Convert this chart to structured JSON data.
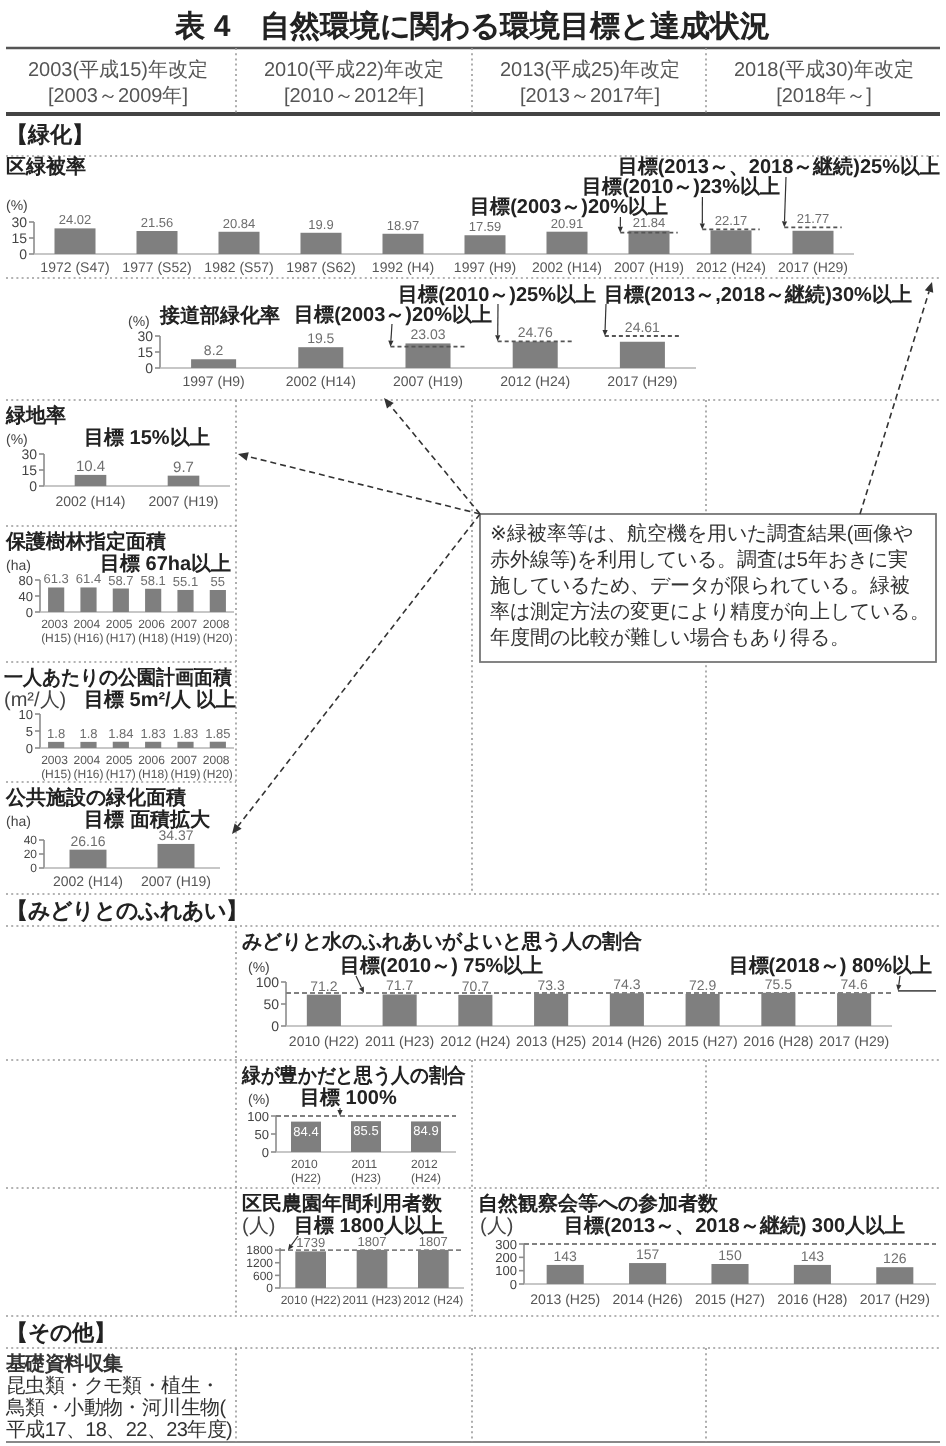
{
  "chart_data": [
    {
      "type": "other",
      "title": "表 4　自然環境に関わる環境目標と達成状況",
      "annotations": [
        "2003(平成15)年改定",
        "[2003～2009年]",
        "2010(平成22)年改定",
        "[2010～2012年]",
        "2013(平成25)年改定",
        "[2013～2017年]",
        "2018(平成30)年改定",
        "[2018年～]"
      ]
    },
    {
      "type": "other",
      "title": "【緑化】"
    },
    {
      "type": "bar",
      "title": "区緑被率",
      "ylabel": "(%)",
      "categories": [
        "1972 (S47)",
        "1977 (S52)",
        "1982 (S57)",
        "1987 (S62)",
        "1992 (H4)",
        "1997 (H9)",
        "2002 (H14)",
        "2007 (H19)",
        "2012 (H24)",
        "2017 (H29)"
      ],
      "values": [
        24.02,
        21.56,
        20.84,
        19.9,
        18.97,
        17.59,
        20.91,
        21.84,
        22.17,
        21.77
      ],
      "color": "#7f7f7f",
      "ylim": [
        0,
        30
      ],
      "yticks": [
        0,
        15,
        30
      ],
      "data_labels": true,
      "annotations": [
        {
          "text": "目標(2003～)20%以上",
          "x": "2007 (H19)",
          "y": 20
        },
        {
          "text": "目標(2010～)23%以上",
          "x": "2012 (H24)",
          "y": 23
        },
        {
          "text": "目標(2013～、2018～継続)25%以上",
          "x": "2017 (H29)",
          "y": 25
        }
      ]
    },
    {
      "type": "bar",
      "title": "接道部緑化率",
      "ylabel": "(%)",
      "categories": [
        "1997 (H9)",
        "2002 (H14)",
        "2007 (H19)",
        "2012 (H24)",
        "2017 (H29)"
      ],
      "values": [
        8.2,
        19.5,
        23.03,
        24.76,
        24.61
      ],
      "color": "#7f7f7f",
      "ylim": [
        0,
        30
      ],
      "yticks": [
        0,
        15,
        30
      ],
      "data_labels": true,
      "annotations": [
        {
          "text": "目標(2003～)20%以上",
          "x": "2007 (H19)",
          "y": 20
        },
        {
          "text": "目標(2010～)25%以上",
          "x": "2012 (H24)",
          "y": 25
        },
        {
          "text": "目標(2013～,2018～継続)30%以上",
          "x": "2017 (H29)",
          "y": 30
        }
      ]
    },
    {
      "type": "bar",
      "title": "緑地率",
      "ylabel": "(%)",
      "categories": [
        "2002 (H14)",
        "2007 (H19)"
      ],
      "values": [
        10.4,
        9.7
      ],
      "color": "#7f7f7f",
      "ylim": [
        0,
        30
      ],
      "yticks": [
        0,
        15,
        30
      ],
      "data_labels": true,
      "annotations": [
        "目標 15%以上"
      ]
    },
    {
      "type": "bar",
      "title": "保護樹林指定面積",
      "ylabel": "(ha)",
      "categories": [
        "2003 (H15)",
        "2004 (H16)",
        "2005 (H17)",
        "2006 (H18)",
        "2007 (H19)",
        "2008 (H20)"
      ],
      "values": [
        61.3,
        61.4,
        58.7,
        58.1,
        55.1,
        55
      ],
      "color": "#7f7f7f",
      "ylim": [
        0,
        80
      ],
      "yticks": [
        0,
        40,
        80
      ],
      "data_labels": true,
      "annotations": [
        "目標 67ha以上"
      ]
    },
    {
      "type": "other",
      "annotations": [
        "※緑被率等は、航空機を用いた調査結果(画像や赤外線等)を利用している。調査は5年おきに実施しているため、データが限られている。緑被率は測定方法の変更により精度が向上している。年度間の比較が難しい場合もあり得る。"
      ]
    },
    {
      "type": "bar",
      "title": "一人あたりの公園計画面積",
      "ylabel": "(m²/人)",
      "categories": [
        "2003 (H15)",
        "2004 (H16)",
        "2005 (H17)",
        "2006 (H18)",
        "2007 (H19)",
        "2008 (H20)"
      ],
      "values": [
        1.8,
        1.8,
        1.84,
        1.83,
        1.83,
        1.85
      ],
      "color": "#7f7f7f",
      "ylim": [
        0,
        10
      ],
      "yticks": [
        0,
        5,
        10
      ],
      "data_labels": true,
      "annotations": [
        "目標 5m²/人 以上"
      ]
    },
    {
      "type": "bar",
      "title": "公共施設の緑化面積",
      "ylabel": "(ha)",
      "categories": [
        "2002 (H14)",
        "2007 (H19)"
      ],
      "values": [
        26.16,
        34.37
      ],
      "color": "#7f7f7f",
      "ylim": [
        0,
        40
      ],
      "yticks": [
        0,
        20,
        40
      ],
      "data_labels": true,
      "annotations": [
        "目標 面積拡大"
      ]
    },
    {
      "type": "other",
      "title": "【みどりとのふれあい】"
    },
    {
      "type": "bar",
      "title": "みどりと水のふれあいがよいと思う人の割合",
      "ylabel": "(%)",
      "categories": [
        "2010 (H22)",
        "2011 (H23)",
        "2012 (H24)",
        "2013 (H25)",
        "2014 (H26)",
        "2015 (H27)",
        "2016 (H28)",
        "2017 (H29)"
      ],
      "values": [
        71.2,
        71.7,
        70.7,
        73.3,
        74.3,
        72.9,
        75.5,
        74.6
      ],
      "color": "#7f7f7f",
      "ylim": [
        0,
        100
      ],
      "yticks": [
        0,
        50,
        100
      ],
      "data_labels": true,
      "ref_lines": [
        {
          "axis": "y",
          "value": 75,
          "label": "目標(2010～) 75%以上",
          "color": "#808080",
          "line_style": "dashed"
        }
      ],
      "annotations": [
        {
          "text": "目標(2018～) 80%以上",
          "y": 80
        }
      ]
    },
    {
      "type": "bar",
      "title": "緑が豊かだと思う人の割合",
      "ylabel": "(%)",
      "categories": [
        "2010 (H22)",
        "2011 (H23)",
        "2012 (H24)"
      ],
      "values": [
        84.4,
        85.5,
        84.9
      ],
      "color": "#7f7f7f",
      "ylim": [
        0,
        100
      ],
      "yticks": [
        0,
        50,
        100
      ],
      "data_labels": true,
      "ref_lines": [
        {
          "axis": "y",
          "value": 100,
          "label": "目標 100%",
          "color": "#808080",
          "line_style": "dashed"
        }
      ]
    },
    {
      "type": "bar",
      "title": "区民農園年間利用者数",
      "ylabel": "(人)",
      "categories": [
        "2010 (H22)",
        "2011 (H23)",
        "2012 (H24)"
      ],
      "values": [
        1739,
        1807,
        1807
      ],
      "color": "#7f7f7f",
      "ylim": [
        0,
        1900
      ],
      "yticks": [
        0,
        600,
        1200,
        1800
      ],
      "data_labels": true,
      "ref_lines": [
        {
          "axis": "y",
          "value": 1800,
          "label": "目標 1800人以上",
          "color": "#808080",
          "line_style": "dashed"
        }
      ]
    },
    {
      "type": "bar",
      "title": "自然観察会等への参加者数",
      "ylabel": "(人)",
      "categories": [
        "2013 (H25)",
        "2014 (H26)",
        "2015 (H27)",
        "2016 (H28)",
        "2017 (H29)"
      ],
      "values": [
        143,
        157,
        150,
        143,
        126
      ],
      "color": "#7f7f7f",
      "ylim": [
        0,
        300
      ],
      "yticks": [
        0,
        100,
        200,
        300
      ],
      "data_labels": true,
      "ref_lines": [
        {
          "axis": "y",
          "value": 300,
          "label": "目標(2013～、2018～継続) 300人以上",
          "color": "#808080",
          "line_style": "dashed"
        }
      ]
    },
    {
      "type": "other",
      "title": "【その他】",
      "annotations": [
        "基礎資料収集",
        "昆虫類・クモ類・植生・鳥類・小動物・河川生物(平成17、18、22、23年度)"
      ]
    }
  ]
}
